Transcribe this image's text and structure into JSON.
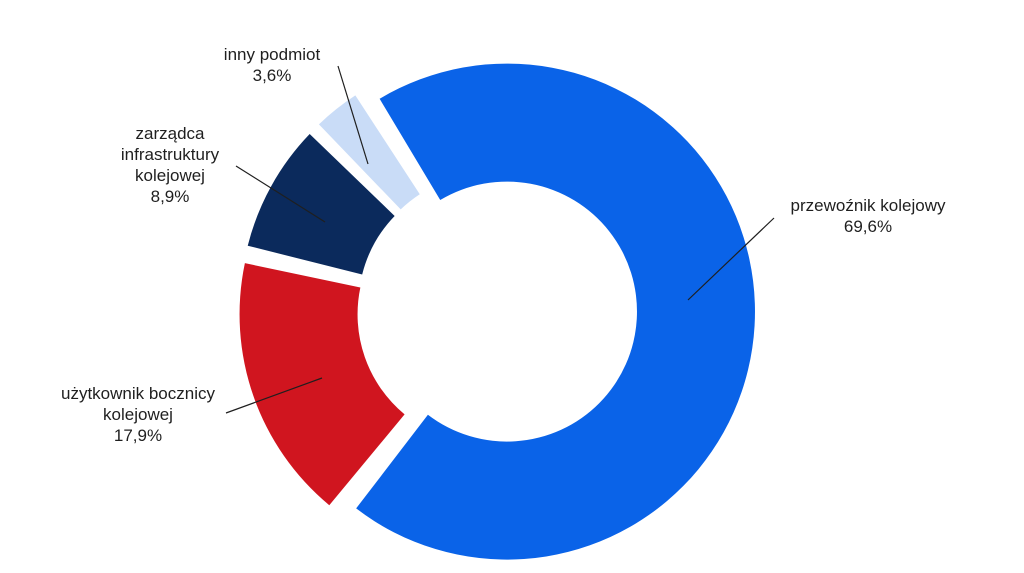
{
  "chart_data": {
    "type": "pie",
    "variant": "donut",
    "slices": [
      {
        "name": "przewoźnik kolejowy",
        "label_lines": [
          "przewoźnik kolejowy"
        ],
        "value": 69.6,
        "value_label": "69,6%",
        "color": "#0a63e8"
      },
      {
        "name": "użytkownik bocznicy kolejowej",
        "label_lines": [
          "użytkownik bocznicy",
          "kolejowej"
        ],
        "value": 17.9,
        "value_label": "17,9%",
        "color": "#d0151f"
      },
      {
        "name": "zarządca infrastruktury kolejowej",
        "label_lines": [
          "zarządca",
          "infrastruktury",
          "kolejowej"
        ],
        "value": 8.9,
        "value_label": "8,9%",
        "color": "#0b2a5c"
      },
      {
        "name": "inny podmiot",
        "label_lines": [
          "inny podmiot"
        ],
        "value": 3.6,
        "value_label": "3,6%",
        "color": "#c9dcf7"
      }
    ],
    "legend": "none",
    "title": ""
  }
}
